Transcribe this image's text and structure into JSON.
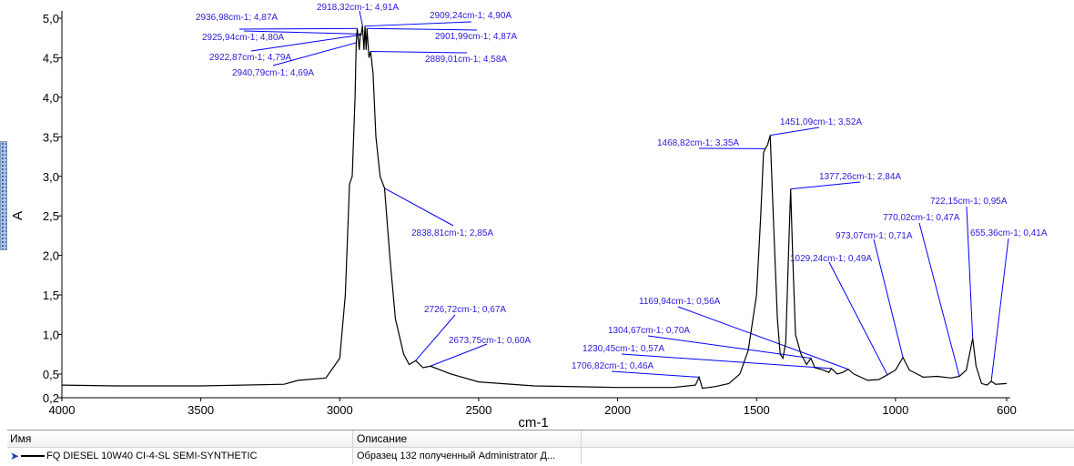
{
  "chart_data": {
    "type": "line",
    "xlabel": "cm-1",
    "ylabel": "A",
    "xlim": [
      4000,
      600
    ],
    "ylim": [
      0.2,
      5.0
    ],
    "x_ticks": [
      "4000",
      "3500",
      "3000",
      "2500",
      "2000",
      "1500",
      "1000",
      "600"
    ],
    "x_tick_values": [
      4000,
      3500,
      3000,
      2500,
      2000,
      1500,
      1000,
      600
    ],
    "y_ticks": [
      "5,0",
      "4,5",
      "4,0",
      "3,5",
      "3,0",
      "2,5",
      "2,0",
      "1,5",
      "1,0",
      "0,5",
      "0,2"
    ],
    "y_tick_values": [
      5.0,
      4.5,
      4.0,
      3.5,
      3.0,
      2.5,
      2.0,
      1.5,
      1.0,
      0.5,
      0.2
    ],
    "grid": false,
    "series": [
      {
        "name": "FQ DIESEL 10W40 CI-4-SL SEMI-SYNTHETIC",
        "color": "#000000",
        "x": [
          4000,
          3800,
          3500,
          3200,
          3150,
          3050,
          3000,
          2980,
          2965,
          2955,
          2945,
          2940.79,
          2936.98,
          2930,
          2925.94,
          2922.87,
          2918.32,
          2913,
          2909.24,
          2905,
          2901.99,
          2895,
          2889.01,
          2880,
          2870,
          2855,
          2838.81,
          2820,
          2800,
          2770,
          2750,
          2726.72,
          2700,
          2673.75,
          2600,
          2500,
          2300,
          2000,
          1800,
          1720,
          1706.82,
          1695,
          1650,
          1600,
          1560,
          1530,
          1500,
          1485,
          1475,
          1468.82,
          1460,
          1451.09,
          1440,
          1425,
          1415,
          1405,
          1395,
          1385,
          1377.26,
          1370,
          1360,
          1340,
          1320,
          1304.67,
          1290,
          1260,
          1240,
          1230.45,
          1210,
          1190,
          1169.94,
          1150,
          1100,
          1060,
          1029.24,
          1000,
          973.07,
          950,
          900,
          850,
          800,
          770.02,
          745,
          722.15,
          710,
          690,
          670,
          655.36,
          640,
          600
        ],
        "y": [
          0.36,
          0.35,
          0.35,
          0.37,
          0.42,
          0.45,
          0.7,
          1.5,
          2.9,
          3.0,
          4.0,
          4.69,
          4.87,
          4.6,
          4.8,
          4.79,
          4.91,
          4.6,
          4.9,
          4.6,
          4.87,
          4.5,
          4.58,
          4.3,
          3.5,
          3.0,
          2.85,
          2.0,
          1.2,
          0.75,
          0.62,
          0.67,
          0.58,
          0.6,
          0.5,
          0.4,
          0.35,
          0.33,
          0.33,
          0.36,
          0.46,
          0.32,
          0.34,
          0.38,
          0.5,
          0.8,
          1.5,
          2.5,
          3.3,
          3.35,
          3.4,
          3.52,
          2.5,
          1.2,
          0.75,
          0.7,
          0.9,
          2.0,
          2.84,
          2.0,
          1.0,
          0.75,
          0.62,
          0.7,
          0.58,
          0.55,
          0.52,
          0.57,
          0.5,
          0.52,
          0.56,
          0.5,
          0.42,
          0.43,
          0.49,
          0.55,
          0.71,
          0.55,
          0.46,
          0.47,
          0.45,
          0.47,
          0.55,
          0.95,
          0.6,
          0.38,
          0.36,
          0.41,
          0.37,
          0.38
        ]
      }
    ],
    "annotations": [
      {
        "x": 2936.98,
        "y": 4.87,
        "text": "2936,98cm-1; 4,87A"
      },
      {
        "x": 2925.94,
        "y": 4.8,
        "text": "2925,94cm-1; 4,80A"
      },
      {
        "x": 2922.87,
        "y": 4.79,
        "text": "2922,87cm-1; 4,79A"
      },
      {
        "x": 2940.79,
        "y": 4.69,
        "text": "2940,79cm-1; 4,69A"
      },
      {
        "x": 2918.32,
        "y": 4.91,
        "text": "2918,32cm-1; 4,91A"
      },
      {
        "x": 2909.24,
        "y": 4.9,
        "text": "2909,24cm-1; 4,90A"
      },
      {
        "x": 2901.99,
        "y": 4.87,
        "text": "2901,99cm-1; 4,87A"
      },
      {
        "x": 2889.01,
        "y": 4.58,
        "text": "2889,01cm-1; 4,58A"
      },
      {
        "x": 2838.81,
        "y": 2.85,
        "text": "2838,81cm-1; 2,85A"
      },
      {
        "x": 2726.72,
        "y": 0.67,
        "text": "2726,72cm-1; 0,67A"
      },
      {
        "x": 2673.75,
        "y": 0.6,
        "text": "2673,75cm-1; 0,60A"
      },
      {
        "x": 1706.82,
        "y": 0.46,
        "text": "1706,82cm-1; 0,46A"
      },
      {
        "x": 1230.45,
        "y": 0.57,
        "text": "1230,45cm-1; 0,57A"
      },
      {
        "x": 1304.67,
        "y": 0.7,
        "text": "1304,67cm-1; 0,70A"
      },
      {
        "x": 1169.94,
        "y": 0.56,
        "text": "1169,94cm-1; 0,56A"
      },
      {
        "x": 1468.82,
        "y": 3.35,
        "text": "1468,82cm-1; 3,35A"
      },
      {
        "x": 1451.09,
        "y": 3.52,
        "text": "1451,09cm-1; 3,52A"
      },
      {
        "x": 1377.26,
        "y": 2.84,
        "text": "1377,26cm-1; 2,84A"
      },
      {
        "x": 1029.24,
        "y": 0.49,
        "text": "1029,24cm-1; 0,49A"
      },
      {
        "x": 973.07,
        "y": 0.71,
        "text": "973,07cm-1; 0,71A"
      },
      {
        "x": 770.02,
        "y": 0.47,
        "text": "770,02cm-1; 0,47A"
      },
      {
        "x": 722.15,
        "y": 0.95,
        "text": "722,15cm-1; 0,95A"
      },
      {
        "x": 655.36,
        "y": 0.41,
        "text": "655,36cm-1; 0,41A"
      }
    ],
    "annotation_color": "#0000ff"
  },
  "table": {
    "headers": [
      "Имя",
      "Описание"
    ],
    "rows": [
      {
        "name": "FQ DIESEL 10W40 CI-4-SL SEMI-SYNTHETIC",
        "description": "Образец 132 полученный Administrator Д..."
      }
    ]
  }
}
